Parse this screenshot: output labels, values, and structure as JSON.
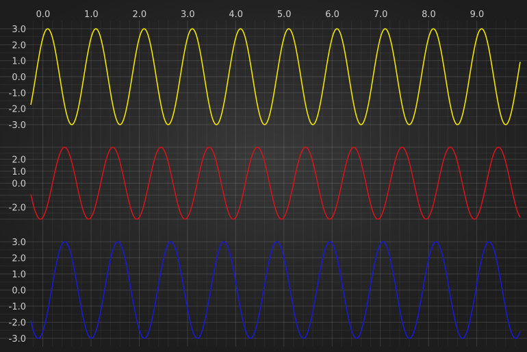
{
  "chart_data": [
    {
      "type": "line",
      "title": "",
      "xlabel": "",
      "ylabel": "",
      "xlim": [
        -0.25,
        9.9
      ],
      "ylim": [
        -3.0,
        3.0
      ],
      "x_ticks": [
        "0.0",
        "1.0",
        "2.0",
        "3.0",
        "4.0",
        "5.0",
        "6.0",
        "7.0",
        "8.0",
        "9.0"
      ],
      "y_ticks": [
        "3.0",
        "2.0",
        "1.0",
        "0.0",
        "-1.0",
        "-2.0",
        "-3.0"
      ],
      "grid": true,
      "series": [
        {
          "color": "#f2e600",
          "function": "3*sin(2*pi*(x+0.15))",
          "period": 1.0,
          "amplitude": 3.0
        }
      ]
    },
    {
      "type": "line",
      "title": "",
      "xlabel": "",
      "ylabel": "",
      "xlim": [
        -0.25,
        9.9
      ],
      "ylim": [
        -3.0,
        3.0
      ],
      "y_ticks": [
        "2.0",
        "1.0",
        "0.0",
        "-2.0"
      ],
      "grid": true,
      "series": [
        {
          "color": "#d4141c",
          "function": "3*sin(2*pi*(x-0.2))",
          "period": 1.0,
          "amplitude": 3.0
        }
      ]
    },
    {
      "type": "line",
      "title": "",
      "xlabel": "",
      "ylabel": "",
      "xlim": [
        -0.25,
        9.9
      ],
      "ylim": [
        -3.0,
        3.0
      ],
      "y_ticks": [
        "3.0",
        "2.0",
        "1.0",
        "0.0",
        "-1.0",
        "-2.0",
        "-3.0"
      ],
      "grid": true,
      "series": [
        {
          "color": "#1a1ad6",
          "function": "3*sin(2*pi*(x-0.18)/1.1)",
          "period": 1.1,
          "amplitude": 3.0
        }
      ]
    }
  ]
}
